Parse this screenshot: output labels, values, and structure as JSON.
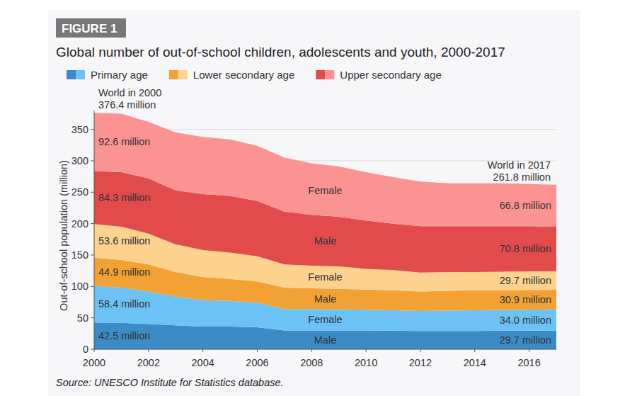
{
  "chart_data": {
    "type": "area",
    "stacked": true,
    "figure_label": "FIGURE 1",
    "title": "Global number of out-of-school children, adolescents and youth, 2000-2017",
    "y_label": "Out-of-school population (million)",
    "source": "Source: UNESCO Institute for Statistics database.",
    "x": [
      2000,
      2001,
      2002,
      2003,
      2004,
      2005,
      2006,
      2007,
      2008,
      2009,
      2010,
      2011,
      2012,
      2013,
      2014,
      2015,
      2016,
      2017
    ],
    "xlim": [
      2000,
      2017
    ],
    "xticks": [
      2000,
      2002,
      2004,
      2006,
      2008,
      2010,
      2012,
      2014,
      2016
    ],
    "ylim": [
      0,
      380
    ],
    "yticks": [
      0,
      50,
      100,
      150,
      200,
      250,
      300,
      350
    ],
    "grid": true,
    "data_labels": true,
    "legend": "top",
    "series": [
      {
        "name": "Male",
        "group": "Primary age",
        "color": "#3b8cc6",
        "values": [
          42.5,
          42,
          40,
          38,
          36,
          36,
          35,
          30,
          30,
          30,
          30,
          29.5,
          29,
          29,
          29,
          29.5,
          29.5,
          29.7
        ],
        "value_labels": [
          "42.5 million",
          null,
          null,
          null,
          null,
          null,
          null,
          null,
          null,
          null,
          null,
          null,
          null,
          null,
          null,
          null,
          null,
          "29.7 million"
        ]
      },
      {
        "name": "Female",
        "group": "Primary age",
        "color": "#6cc2f5",
        "values": [
          58.4,
          56,
          52,
          46,
          42,
          41,
          39,
          34,
          34,
          33.5,
          33,
          32.5,
          32,
          32.5,
          33,
          33,
          33.5,
          34.0
        ],
        "value_labels": [
          "58.4 million",
          null,
          null,
          null,
          null,
          null,
          null,
          null,
          null,
          null,
          null,
          null,
          null,
          null,
          null,
          null,
          null,
          "34.0 million"
        ]
      },
      {
        "name": "Male",
        "group": "Lower secondary age",
        "color": "#f2a234",
        "values": [
          44.9,
          44,
          43,
          39,
          37,
          35,
          34,
          34,
          33,
          32.5,
          32,
          32,
          31,
          31.5,
          32,
          31.5,
          31.5,
          30.9
        ],
        "value_labels": [
          "44.9 million",
          null,
          null,
          null,
          null,
          null,
          null,
          null,
          null,
          null,
          null,
          null,
          null,
          null,
          null,
          null,
          null,
          "30.9 million"
        ]
      },
      {
        "name": "Female",
        "group": "Lower secondary age",
        "color": "#fdd28e",
        "values": [
          53.6,
          53,
          49,
          44,
          43,
          42,
          40,
          37,
          36,
          36,
          33,
          32,
          30,
          30,
          29,
          29.5,
          29.5,
          29.7
        ],
        "value_labels": [
          "53.6 million",
          null,
          null,
          null,
          null,
          null,
          null,
          null,
          null,
          null,
          null,
          null,
          null,
          null,
          null,
          null,
          null,
          "29.7 million"
        ]
      },
      {
        "name": "Male",
        "group": "Upper secondary age",
        "color": "#e14b4b",
        "values": [
          84.3,
          87,
          88,
          86,
          89,
          90,
          88,
          84,
          81,
          79,
          77,
          74,
          74,
          73,
          73,
          72.5,
          72,
          70.8
        ],
        "value_labels": [
          "84.3 million",
          null,
          null,
          null,
          null,
          null,
          null,
          null,
          null,
          null,
          null,
          null,
          null,
          null,
          null,
          null,
          null,
          "70.8 million"
        ]
      },
      {
        "name": "Female",
        "group": "Upper secondary age",
        "color": "#fc9393",
        "values": [
          92.6,
          93,
          90,
          92,
          91,
          90,
          88,
          86,
          82,
          80,
          77,
          74,
          71,
          68,
          68,
          68,
          67,
          66.8
        ],
        "value_labels": [
          "92.6 million",
          null,
          null,
          null,
          null,
          null,
          null,
          null,
          null,
          null,
          null,
          null,
          null,
          null,
          null,
          null,
          null,
          "66.8 million"
        ]
      }
    ],
    "annotations": [
      {
        "x": 2000,
        "y": 376.4,
        "text": [
          "World in 2000",
          "376.4 million"
        ]
      },
      {
        "x": 2017,
        "y": 261.8,
        "text": [
          "World in 2017",
          "261.8 million"
        ]
      }
    ]
  }
}
